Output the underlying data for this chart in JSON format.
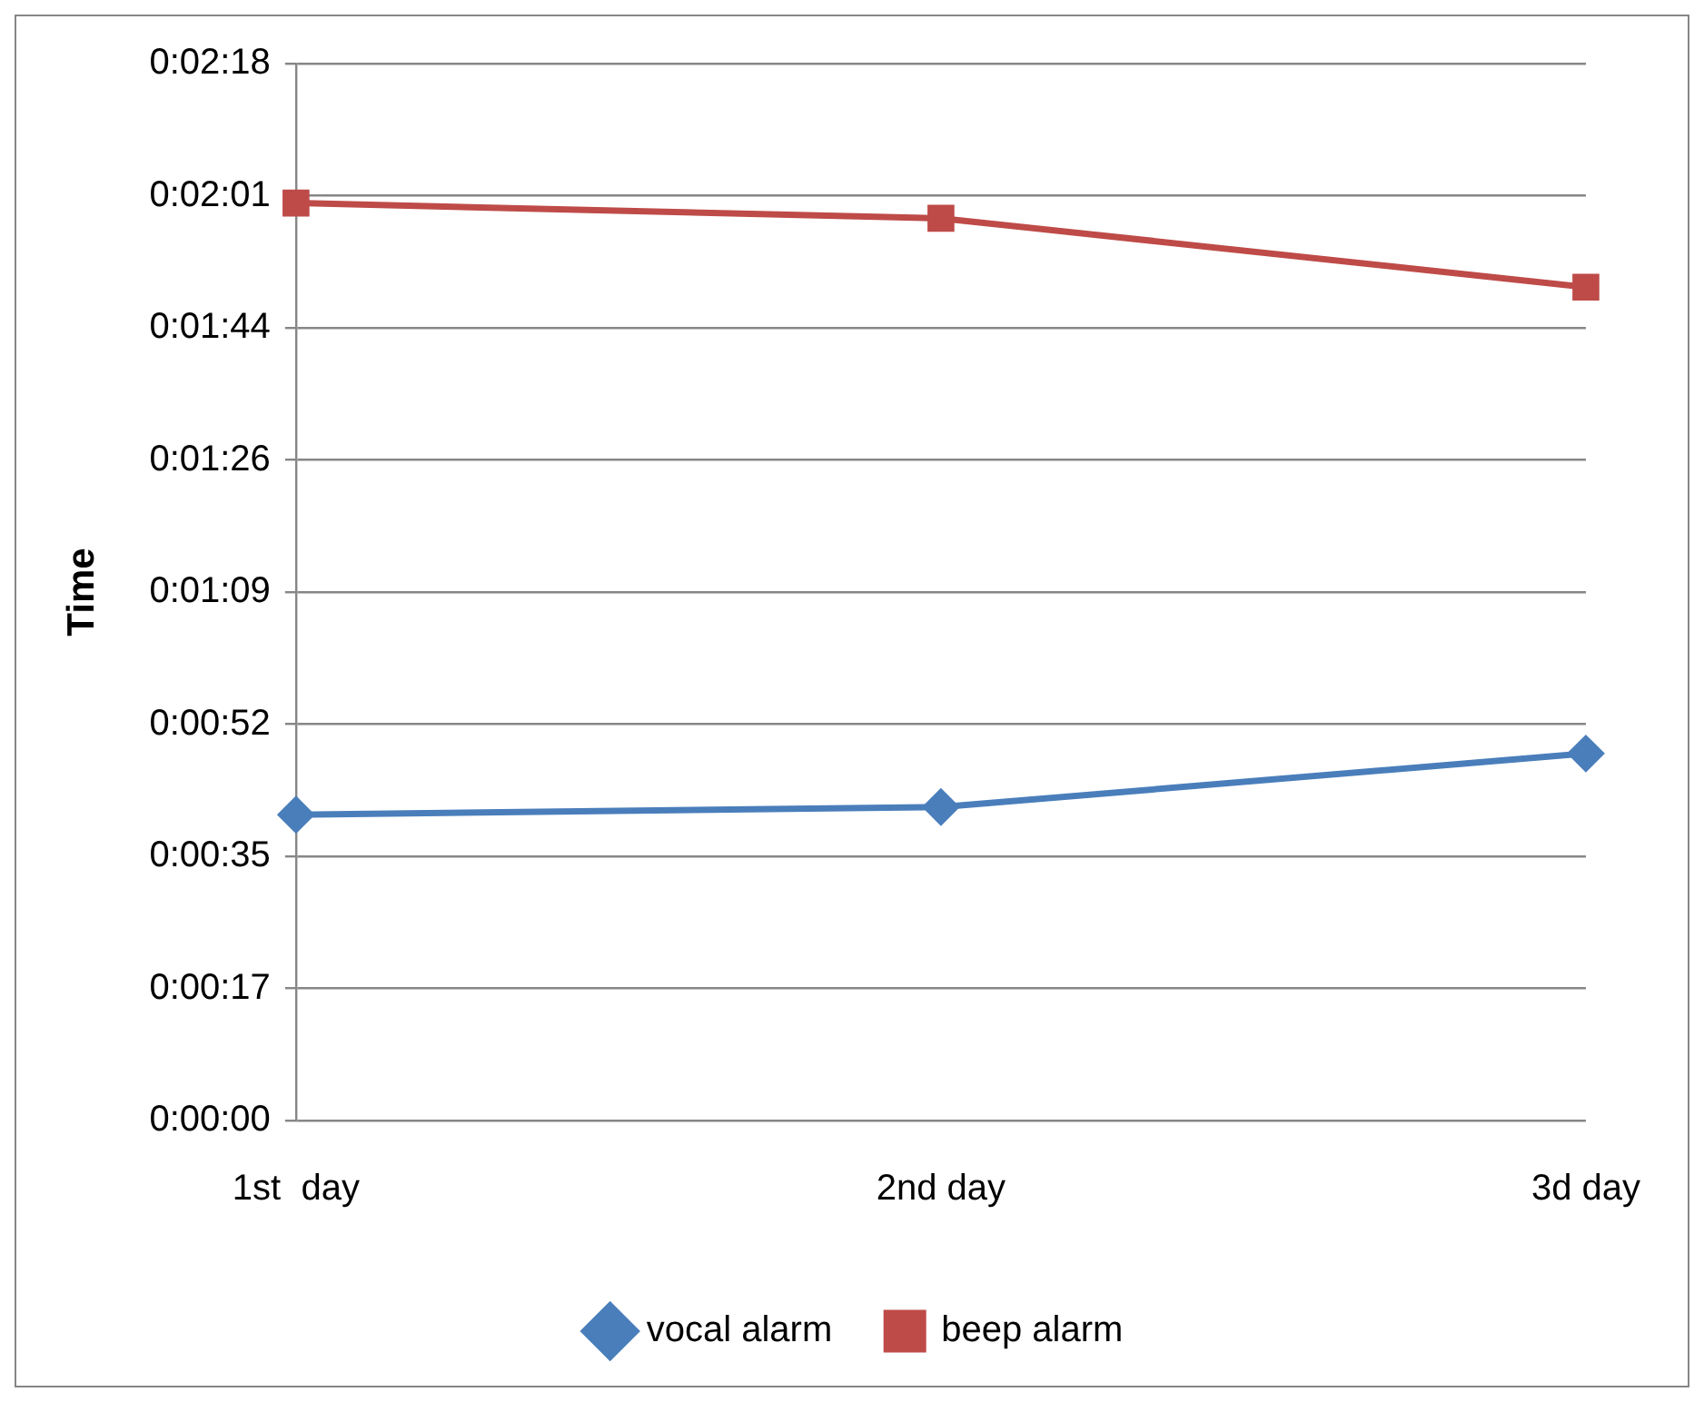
{
  "chart_data": {
    "type": "line",
    "ylabel": "Time",
    "categories": [
      "1st  day",
      "2nd day",
      "3d day"
    ],
    "series": [
      {
        "name": "vocal alarm",
        "color": "#4a7ebb",
        "marker": "diamond",
        "values": [
          40,
          41,
          48
        ]
      },
      {
        "name": "beep alarm",
        "color": "#be4b48",
        "marker": "square",
        "values": [
          120,
          118,
          109
        ]
      }
    ],
    "ylim": [
      0,
      138.24
    ],
    "yticks": [
      {
        "value": 0,
        "label": "0:00:00"
      },
      {
        "value": 17.28,
        "label": "0:00:17"
      },
      {
        "value": 34.56,
        "label": "0:00:35"
      },
      {
        "value": 51.84,
        "label": "0:00:52"
      },
      {
        "value": 69.12,
        "label": "0:01:09"
      },
      {
        "value": 86.4,
        "label": "0:01:26"
      },
      {
        "value": 103.68,
        "label": "0:01:44"
      },
      {
        "value": 120.96,
        "label": "0:02:01"
      },
      {
        "value": 138.24,
        "label": "0:02:18"
      }
    ],
    "grid": "y",
    "legend": "bottom",
    "line_style": "solid"
  }
}
